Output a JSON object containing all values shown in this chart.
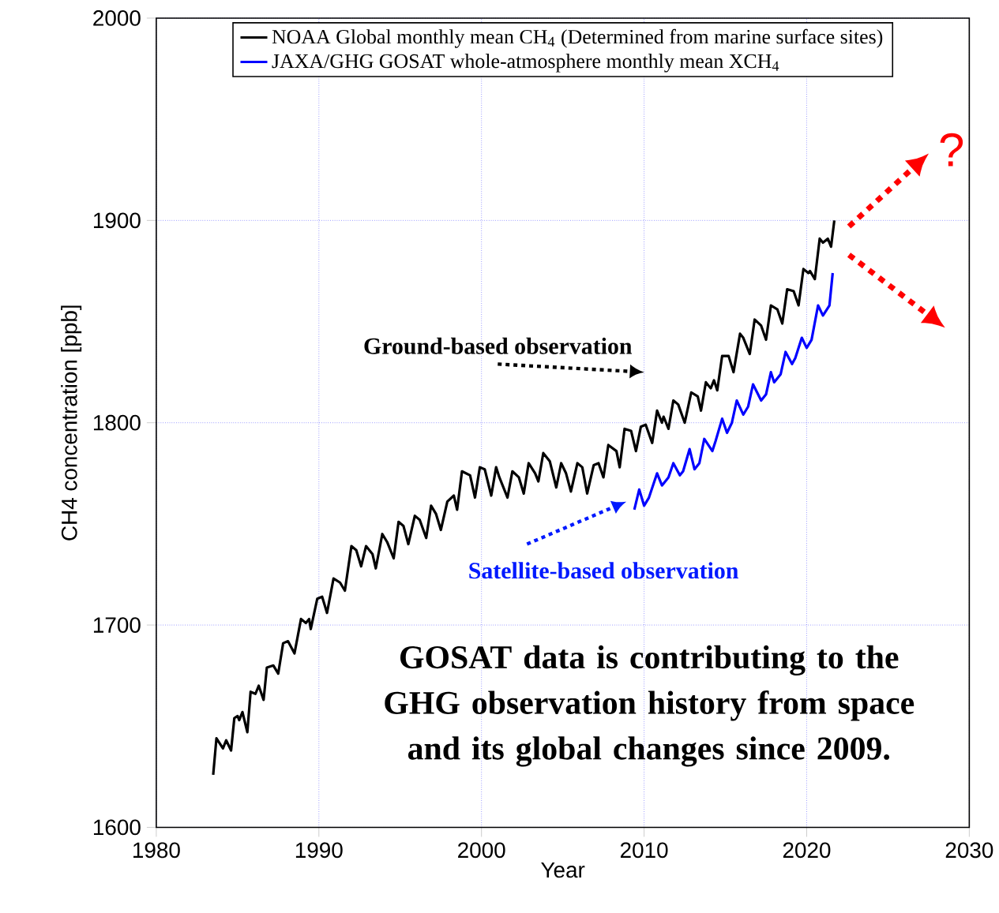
{
  "chart_data": {
    "type": "line",
    "xlabel": "Year",
    "ylabel": "CH4 concentration [ppb]",
    "xlim": [
      1980,
      2030
    ],
    "xticks": [
      1980,
      1990,
      2000,
      2010,
      2020,
      2030
    ],
    "ylim": [
      1600,
      2000
    ],
    "yticks": [
      1600,
      1700,
      1800,
      1900,
      2000
    ],
    "grid": true,
    "legend": "top",
    "series": [
      {
        "name": "NOAA Global monthly mean CH$_{4}$  (Determined from marine surface sites)",
        "color": "#000000",
        "x": [
          1983.5,
          1983.7,
          1984.1,
          1984.3,
          1984.6,
          1984.8,
          1985.0,
          1985.1,
          1985.3,
          1985.6,
          1985.8,
          1986.1,
          1986.3,
          1986.6,
          1986.8,
          1987.2,
          1987.5,
          1987.8,
          1988.1,
          1988.5,
          1988.9,
          1989.2,
          1989.4,
          1989.5,
          1989.9,
          1990.2,
          1990.5,
          1990.9,
          1991.3,
          1991.6,
          1992.0,
          1992.3,
          1992.6,
          1992.9,
          1993.3,
          1993.5,
          1993.9,
          1994.2,
          1994.6,
          1994.9,
          1995.2,
          1995.5,
          1995.9,
          1996.2,
          1996.6,
          1996.9,
          1997.2,
          1997.5,
          1997.9,
          1998.3,
          1998.5,
          1998.8,
          1999.3,
          1999.6,
          1999.9,
          2000.2,
          2000.6,
          2000.9,
          2001.1,
          2001.6,
          2001.9,
          2002.3,
          2002.6,
          2002.9,
          2003.3,
          2003.5,
          2003.8,
          2004.2,
          2004.6,
          2004.9,
          2005.2,
          2005.5,
          2005.9,
          2006.2,
          2006.5,
          2006.9,
          2007.2,
          2007.5,
          2007.8,
          2008.3,
          2008.5,
          2008.8,
          2009.2,
          2009.5,
          2009.8,
          2010.1,
          2010.5,
          2010.8,
          2011.1,
          2011.2,
          2011.5,
          2011.8,
          2012.1,
          2012.5,
          2012.9,
          2013.3,
          2013.5,
          2013.8,
          2014.1,
          2014.3,
          2014.5,
          2014.8,
          2015.2,
          2015.5,
          2015.9,
          2016.1,
          2016.5,
          2016.8,
          2017.2,
          2017.5,
          2017.8,
          2018.2,
          2018.5,
          2018.8,
          2019.2,
          2019.5,
          2019.8,
          2020.1,
          2020.2,
          2020.5,
          2020.8,
          2021.0,
          2021.3,
          2021.5,
          2021.7
        ],
        "values": [
          1626,
          1644,
          1639,
          1643,
          1638,
          1654,
          1655,
          1653,
          1657,
          1647,
          1667,
          1666,
          1670,
          1663,
          1679,
          1680,
          1676,
          1691,
          1692,
          1686,
          1703,
          1701,
          1703,
          1698,
          1713,
          1714,
          1706,
          1723,
          1721,
          1717,
          1739,
          1737,
          1729,
          1739,
          1735,
          1728,
          1745,
          1741,
          1733,
          1751,
          1749,
          1740,
          1754,
          1752,
          1743,
          1759,
          1755,
          1747,
          1761,
          1764,
          1757,
          1776,
          1774,
          1763,
          1778,
          1777,
          1764,
          1778,
          1773,
          1763,
          1776,
          1773,
          1765,
          1780,
          1775,
          1771,
          1785,
          1781,
          1768,
          1780,
          1775,
          1766,
          1780,
          1778,
          1765,
          1779,
          1780,
          1773,
          1789,
          1786,
          1778,
          1797,
          1796,
          1786,
          1798,
          1799,
          1790,
          1806,
          1800,
          1803,
          1797,
          1811,
          1809,
          1800,
          1815,
          1813,
          1806,
          1820,
          1817,
          1821,
          1816,
          1833,
          1833,
          1825,
          1844,
          1842,
          1834,
          1851,
          1848,
          1841,
          1858,
          1856,
          1849,
          1866,
          1865,
          1858,
          1876,
          1874,
          1875,
          1871,
          1891,
          1889,
          1891,
          1887,
          1900
        ]
      },
      {
        "name": "JAXA/GHG GOSAT whole-atmosphere monthly mean XCH$_{4}$",
        "color": "#0000ff",
        "x": [
          2009.4,
          2009.7,
          2010.0,
          2010.3,
          2010.8,
          2011.1,
          2011.5,
          2011.8,
          2012.2,
          2012.4,
          2012.8,
          2013.1,
          2013.4,
          2013.7,
          2014.2,
          2014.4,
          2014.8,
          2015.1,
          2015.4,
          2015.7,
          2016.1,
          2016.4,
          2016.7,
          2017.2,
          2017.5,
          2017.8,
          2018.0,
          2018.4,
          2018.7,
          2019.1,
          2019.3,
          2019.7,
          2020.0,
          2020.3,
          2020.7,
          2021.0,
          2021.4,
          2021.6
        ],
        "values": [
          1757,
          1767,
          1759,
          1763,
          1775,
          1769,
          1773,
          1780,
          1774,
          1776,
          1787,
          1777,
          1780,
          1792,
          1786,
          1791,
          1802,
          1795,
          1800,
          1811,
          1804,
          1808,
          1819,
          1811,
          1814,
          1825,
          1820,
          1824,
          1835,
          1829,
          1832,
          1842,
          1837,
          1841,
          1858,
          1853,
          1858,
          1874
        ]
      }
    ],
    "annotations": [
      "Ground-based observation",
      "Satellite-based observation",
      "?",
      "GOSAT data is contributing to the GHG observation history from space and its global changes since 2009."
    ]
  }
}
